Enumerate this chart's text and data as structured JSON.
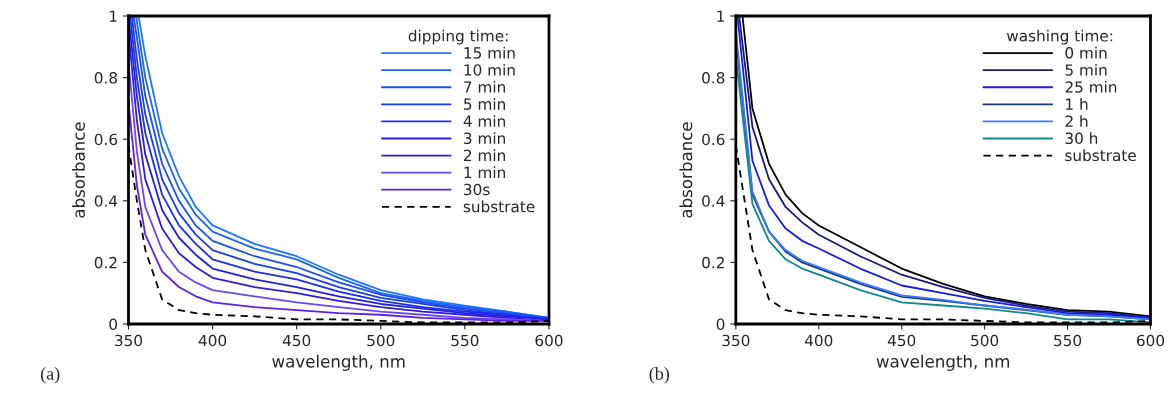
{
  "chart_data": [
    {
      "type": "line",
      "xlabel": "wavelength, nm",
      "ylabel": "absorbance",
      "legend_title": "dipping time:",
      "legend": "top right",
      "grid": false,
      "xlim": [
        350,
        600
      ],
      "ylim": [
        0,
        1
      ],
      "xticks": [
        350,
        400,
        450,
        500,
        550,
        600
      ],
      "yticks": [
        0,
        0.2,
        0.4,
        0.6,
        0.8,
        1
      ],
      "annotations": [
        "(a)"
      ],
      "x": [
        350,
        355,
        360,
        370,
        380,
        390,
        400,
        425,
        450,
        475,
        500,
        525,
        550,
        575,
        600
      ],
      "series": [
        {
          "name": "15 min",
          "color": "#1e78ff",
          "x": [
            356,
            360,
            370,
            380,
            390,
            400,
            425,
            450,
            475,
            500,
            525,
            550,
            575,
            600
          ],
          "values": [
            1,
            0.87,
            0.62,
            0.48,
            0.38,
            0.32,
            0.26,
            0.22,
            0.16,
            0.11,
            0.08,
            0.06,
            0.04,
            0.02
          ]
        },
        {
          "name": "10 min",
          "color": "#1d64f5",
          "x": [
            354.5,
            360,
            370,
            380,
            390,
            400,
            425,
            450,
            475,
            500,
            525,
            550,
            575,
            600
          ],
          "values": [
            1,
            0.8,
            0.57,
            0.44,
            0.355,
            0.3,
            0.245,
            0.21,
            0.15,
            0.1,
            0.075,
            0.055,
            0.04,
            0.02
          ]
        },
        {
          "name": "7 min",
          "color": "#1a50f0",
          "x": [
            353,
            355,
            360,
            370,
            380,
            390,
            400,
            425,
            450,
            475,
            500,
            525,
            550,
            575,
            600
          ],
          "values": [
            1,
            0.93,
            0.74,
            0.52,
            0.4,
            0.32,
            0.27,
            0.22,
            0.185,
            0.135,
            0.095,
            0.07,
            0.05,
            0.035,
            0.02
          ]
        },
        {
          "name": "5 min",
          "color": "#1a3ef0",
          "x": [
            352,
            355,
            360,
            370,
            380,
            390,
            400,
            425,
            450,
            475,
            500,
            525,
            550,
            575,
            600
          ],
          "values": [
            1,
            0.86,
            0.68,
            0.47,
            0.36,
            0.29,
            0.24,
            0.195,
            0.165,
            0.12,
            0.085,
            0.065,
            0.045,
            0.03,
            0.015
          ]
        },
        {
          "name": "4 min",
          "color": "#1a30e8",
          "x": [
            351,
            355,
            360,
            370,
            380,
            390,
            400,
            425,
            450,
            475,
            500,
            525,
            550,
            575,
            600
          ],
          "values": [
            1,
            0.8,
            0.62,
            0.42,
            0.32,
            0.26,
            0.21,
            0.17,
            0.145,
            0.105,
            0.075,
            0.055,
            0.04,
            0.03,
            0.015
          ]
        },
        {
          "name": "3 min",
          "color": "#2020e0",
          "values": [
            1,
            0.74,
            0.55,
            0.37,
            0.28,
            0.225,
            0.18,
            0.145,
            0.12,
            0.09,
            0.065,
            0.05,
            0.035,
            0.025,
            0.015
          ]
        },
        {
          "name": "2 min",
          "color": "#3418e6",
          "values": [
            0.95,
            0.66,
            0.47,
            0.31,
            0.23,
            0.185,
            0.15,
            0.12,
            0.1,
            0.075,
            0.055,
            0.04,
            0.03,
            0.02,
            0.01
          ]
        },
        {
          "name": "1 min",
          "color": "#6a48f5",
          "values": [
            0.85,
            0.56,
            0.38,
            0.24,
            0.17,
            0.135,
            0.11,
            0.09,
            0.07,
            0.055,
            0.04,
            0.03,
            0.02,
            0.015,
            0.01
          ]
        },
        {
          "name": "30s",
          "color": "#6020e8",
          "values": [
            0.72,
            0.45,
            0.29,
            0.17,
            0.12,
            0.09,
            0.07,
            0.055,
            0.045,
            0.035,
            0.03,
            0.02,
            0.015,
            0.01,
            0.01
          ]
        },
        {
          "name": "substrate",
          "color": "#000000",
          "line_style": "dashed",
          "values": [
            0.58,
            0.4,
            0.24,
            0.08,
            0.045,
            0.035,
            0.03,
            0.025,
            0.015,
            0.015,
            0.01,
            0.005,
            0.005,
            0.005,
            0.01
          ]
        }
      ]
    },
    {
      "type": "line",
      "xlabel": "wavelength, nm",
      "ylabel": "absorbance",
      "legend_title": "washing time:",
      "legend": "top right",
      "grid": false,
      "xlim": [
        350,
        600
      ],
      "ylim": [
        0,
        1
      ],
      "xticks": [
        350,
        400,
        450,
        500,
        550,
        600
      ],
      "yticks": [
        0,
        0.2,
        0.4,
        0.6,
        0.8,
        1
      ],
      "annotations": [
        "(b)"
      ],
      "x": [
        350,
        360,
        370,
        380,
        390,
        400,
        425,
        450,
        475,
        500,
        525,
        550,
        575,
        600
      ],
      "series": [
        {
          "name": "0 min",
          "color": "#000000",
          "x": [
            354,
            360,
            370,
            380,
            390,
            400,
            425,
            450,
            475,
            500,
            525,
            550,
            575,
            600
          ],
          "values": [
            1,
            0.7,
            0.52,
            0.42,
            0.36,
            0.32,
            0.25,
            0.18,
            0.13,
            0.09,
            0.065,
            0.045,
            0.04,
            0.025
          ]
        },
        {
          "name": "5 min",
          "color": "#1a1a80",
          "x": [
            352,
            360,
            370,
            380,
            390,
            400,
            425,
            450,
            475,
            500,
            525,
            550,
            575,
            600
          ],
          "values": [
            1,
            0.64,
            0.47,
            0.38,
            0.33,
            0.29,
            0.22,
            0.16,
            0.12,
            0.085,
            0.06,
            0.04,
            0.035,
            0.02
          ]
        },
        {
          "name": "25 min",
          "color": "#1a1ae6",
          "x": [
            351,
            360,
            370,
            380,
            390,
            400,
            425,
            450,
            475,
            500,
            525,
            550,
            575,
            600
          ],
          "values": [
            1,
            0.53,
            0.385,
            0.31,
            0.27,
            0.245,
            0.18,
            0.125,
            0.1,
            0.075,
            0.055,
            0.035,
            0.03,
            0.02
          ]
        },
        {
          "name": "1 h",
          "color": "#1a3a80",
          "values": [
            0.93,
            0.42,
            0.3,
            0.235,
            0.2,
            0.18,
            0.13,
            0.088,
            0.075,
            0.06,
            0.045,
            0.03,
            0.025,
            0.015
          ]
        },
        {
          "name": "2 h",
          "color": "#3a7aff",
          "values": [
            0.95,
            0.43,
            0.3,
            0.24,
            0.205,
            0.185,
            0.135,
            0.093,
            0.078,
            0.06,
            0.047,
            0.03,
            0.025,
            0.015
          ]
        },
        {
          "name": "30 h",
          "color": "#108a8a",
          "values": [
            0.87,
            0.39,
            0.27,
            0.21,
            0.18,
            0.16,
            0.11,
            0.07,
            0.06,
            0.05,
            0.035,
            0.015,
            0.015,
            0.005
          ]
        },
        {
          "name": "substrate",
          "color": "#000000",
          "line_style": "dashed",
          "values": [
            0.58,
            0.24,
            0.08,
            0.045,
            0.035,
            0.03,
            0.025,
            0.015,
            0.015,
            0.01,
            0.005,
            0.005,
            0.005,
            0.01
          ]
        }
      ]
    }
  ]
}
